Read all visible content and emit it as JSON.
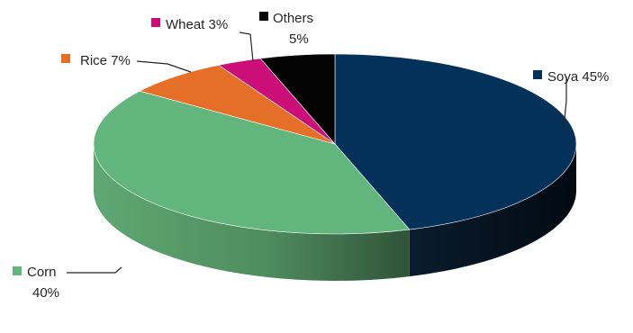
{
  "chart_data": {
    "type": "pie",
    "style": "3d",
    "slices": [
      {
        "name": "Soya",
        "value": 45,
        "label_line1": "Soya 45%",
        "label_line2": "",
        "color": "#033159"
      },
      {
        "name": "Corn",
        "value": 40,
        "label_line1": "Corn",
        "label_line2": "40%",
        "color": "#61B57D"
      },
      {
        "name": "Rice",
        "value": 7,
        "label_line1": "Rice 7%",
        "label_line2": "",
        "color": "#E56F27"
      },
      {
        "name": "Wheat",
        "value": 3,
        "label_line1": "Wheat 3%",
        "label_line2": "",
        "color": "#CC0E78"
      },
      {
        "name": "Others",
        "value": 5,
        "label_line1": "Others",
        "label_line2": "5%",
        "color": "#030303"
      }
    ]
  }
}
